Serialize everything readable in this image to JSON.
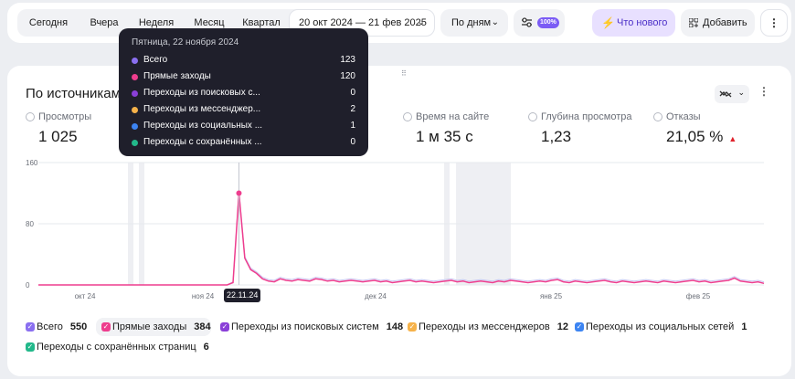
{
  "toolbar": {
    "periods": [
      "Сегодня",
      "Вчера",
      "Неделя",
      "Месяц",
      "Квартал"
    ],
    "date_range": "20 окт 2024 — 21 фев 2025",
    "grouping": "По дням",
    "sampling_badge": "100%",
    "whats_new": "Что нового",
    "add": "Добавить",
    "more": "⋮"
  },
  "card": {
    "title": "По источникам",
    "more": "⋮",
    "metrics": [
      {
        "label": "Просмотры",
        "value": "1 025"
      },
      {
        "label": "Время на сайте",
        "value": "1 м 35 с"
      },
      {
        "label": "Глубина просмотра",
        "value": "1,23"
      },
      {
        "label": "Отказы",
        "value": "21,05 %",
        "trend": "▲"
      }
    ]
  },
  "tooltip": {
    "date": "Пятница, 22 ноября 2024",
    "rows": [
      {
        "name": "Всего",
        "value": "123",
        "color": "#8a6ff0"
      },
      {
        "name": "Прямые заходы",
        "value": "120",
        "color": "#ee3d8e"
      },
      {
        "name": "Переходы из поисковых с...",
        "value": "0",
        "color": "#8a3fd8"
      },
      {
        "name": "Переходы из мессенджер...",
        "value": "2",
        "color": "#f6b24a"
      },
      {
        "name": "Переходы из социальных ...",
        "value": "1",
        "color": "#3c84f2"
      },
      {
        "name": "Переходы с сохранённых ...",
        "value": "0",
        "color": "#22b88a"
      }
    ]
  },
  "chart_data": {
    "type": "line",
    "y_ticks": [
      "160",
      "80",
      "0"
    ],
    "ylim": [
      0,
      160
    ],
    "x_tick_labels": [
      "окт 24",
      "ноя 24",
      "дек 24",
      "янв 25",
      "фев 25"
    ],
    "highlight_date": "22.11.24",
    "series": [
      {
        "name": "Прямые заходы",
        "color": "#ee3d8e",
        "values": [
          0,
          0,
          0,
          0,
          0,
          0,
          0,
          0,
          0,
          0,
          0,
          0,
          0,
          0,
          0,
          0,
          0,
          0,
          0,
          0,
          0,
          0,
          0,
          0,
          0,
          0,
          0,
          0,
          0,
          0,
          0,
          0,
          0,
          3,
          120,
          35,
          20,
          15,
          8,
          5,
          4,
          8,
          6,
          5,
          7,
          6,
          5,
          8,
          7,
          5,
          6,
          4,
          5,
          6,
          5,
          4,
          5,
          6,
          4,
          5,
          3,
          4,
          5,
          6,
          4,
          5,
          4,
          3,
          4,
          5,
          6,
          4,
          5,
          3,
          4,
          5,
          4,
          3,
          5,
          4,
          6,
          5,
          4,
          3,
          4,
          5,
          4,
          6,
          7,
          4,
          3,
          5,
          4,
          3,
          4,
          5,
          6,
          4,
          3,
          5,
          4,
          3,
          4,
          5,
          4,
          3,
          5,
          4,
          3,
          4,
          5,
          6,
          4,
          5,
          3,
          4,
          5,
          6,
          9,
          5,
          4,
          3,
          4,
          2
        ]
      },
      {
        "name": "Всего",
        "color": "#c9c3f0",
        "values": [
          0,
          0,
          0,
          0,
          0,
          0,
          0,
          0,
          0,
          0,
          0,
          0,
          0,
          0,
          0,
          0,
          0,
          0,
          0,
          0,
          0,
          0,
          0,
          0,
          0,
          0,
          0,
          0,
          0,
          0,
          0,
          0,
          0,
          4,
          123,
          37,
          22,
          17,
          10,
          7,
          6,
          10,
          8,
          7,
          9,
          8,
          7,
          10,
          9,
          7,
          8,
          6,
          7,
          8,
          7,
          6,
          7,
          8,
          6,
          7,
          5,
          6,
          7,
          8,
          6,
          7,
          6,
          5,
          6,
          7,
          8,
          6,
          7,
          5,
          6,
          7,
          6,
          5,
          7,
          6,
          8,
          7,
          6,
          5,
          6,
          7,
          6,
          8,
          9,
          6,
          5,
          7,
          6,
          5,
          6,
          7,
          8,
          6,
          5,
          7,
          6,
          5,
          6,
          7,
          6,
          5,
          7,
          6,
          5,
          6,
          7,
          8,
          6,
          7,
          5,
          6,
          7,
          8,
          11,
          7,
          6,
          5,
          6,
          4
        ]
      }
    ]
  },
  "legend": [
    {
      "name": "Всего",
      "count": "550",
      "color": "#8a6ff0",
      "active": false
    },
    {
      "name": "Прямые заходы",
      "count": "384",
      "color": "#ee3d8e",
      "active": true
    },
    {
      "name": "Переходы из поисковых систем",
      "count": "148",
      "color": "#8a3fd8",
      "active": false
    },
    {
      "name": "Переходы из мессенджеров",
      "count": "12",
      "color": "#f6b24a",
      "active": false
    },
    {
      "name": "Переходы из социальных сетей",
      "count": "1",
      "color": "#3c84f2",
      "active": false
    },
    {
      "name": "Переходы с сохранённых страниц",
      "count": "6",
      "color": "#22b88a",
      "active": false
    }
  ]
}
